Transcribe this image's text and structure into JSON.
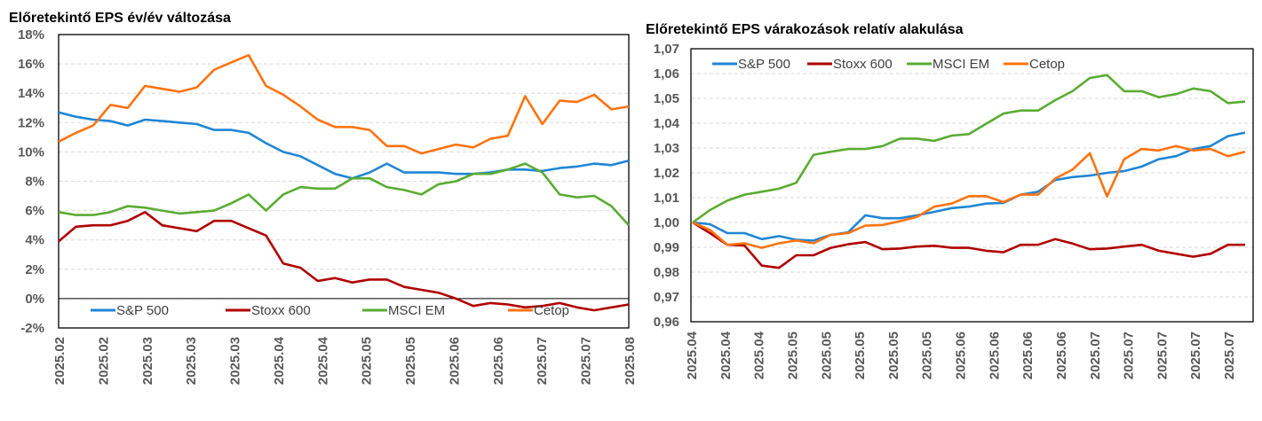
{
  "chart_data": [
    {
      "type": "line",
      "title": "Előretekintő EPS év/év változása",
      "xlabel": "",
      "ylabel": "",
      "ylim": [
        -2,
        18
      ],
      "yticks": [
        "18%",
        "16%",
        "14%",
        "12%",
        "10%",
        "8%",
        "6%",
        "4%",
        "2%",
        "0%",
        "-2%"
      ],
      "ytick_values": [
        18,
        16,
        14,
        12,
        10,
        8,
        6,
        4,
        2,
        0,
        -2
      ],
      "xticks": [
        "2025.02",
        "2025.02",
        "2025.03",
        "2025.03",
        "2025.03",
        "2025.04",
        "2025.04",
        "2025.05",
        "2025.05",
        "2025.06",
        "2025.06",
        "2025.07",
        "2025.07",
        "2025.08"
      ],
      "grid": true,
      "legend_position": "bottom-inside",
      "series": [
        {
          "name": "S&P 500",
          "color": "#1f86d6",
          "values": [
            12.7,
            12.4,
            12.2,
            12.1,
            11.8,
            12.2,
            12.1,
            12.0,
            11.9,
            11.5,
            11.5,
            11.3,
            10.6,
            10.0,
            9.7,
            9.1,
            8.5,
            8.2,
            8.6,
            9.2,
            8.6,
            8.6,
            8.6,
            8.5,
            8.5,
            8.6,
            8.8,
            8.8,
            8.7,
            8.9,
            9.0,
            9.2,
            9.1,
            9.4
          ]
        },
        {
          "name": "Stoxx 600",
          "color": "#b00000",
          "values": [
            3.9,
            4.9,
            5.0,
            5.0,
            5.3,
            5.9,
            5.0,
            4.8,
            4.6,
            5.3,
            5.3,
            4.8,
            4.3,
            2.4,
            2.1,
            1.2,
            1.4,
            1.1,
            1.3,
            1.3,
            0.8,
            0.6,
            0.4,
            0.0,
            -0.5,
            -0.3,
            -0.4,
            -0.6,
            -0.5,
            -0.3,
            -0.6,
            -0.8,
            -0.6,
            -0.4
          ]
        },
        {
          "name": "MSCI EM",
          "color": "#5aac32",
          "values": [
            5.9,
            5.7,
            5.7,
            5.9,
            6.3,
            6.2,
            6.0,
            5.8,
            5.9,
            6.0,
            6.5,
            7.1,
            6.0,
            7.1,
            7.6,
            7.5,
            7.5,
            8.2,
            8.2,
            7.6,
            7.4,
            7.1,
            7.8,
            8.0,
            8.5,
            8.5,
            8.8,
            9.2,
            8.6,
            7.1,
            6.9,
            7.0,
            6.3,
            5.0
          ]
        },
        {
          "name": "Cetop",
          "color": "#ff7310",
          "values": [
            10.7,
            11.3,
            11.8,
            13.2,
            13.0,
            14.5,
            14.3,
            14.1,
            14.4,
            15.6,
            16.1,
            16.6,
            14.5,
            13.9,
            13.1,
            12.2,
            11.7,
            11.7,
            11.5,
            10.4,
            10.4,
            9.9,
            10.2,
            10.5,
            10.3,
            10.9,
            11.1,
            13.8,
            11.9,
            13.5,
            13.4,
            13.9,
            12.9,
            13.1
          ]
        }
      ]
    },
    {
      "type": "line",
      "title": "Előretekintő EPS várakozások relatív alakulása",
      "xlabel": "",
      "ylabel": "",
      "ylim": [
        0.96,
        1.07
      ],
      "yticks": [
        "1,07",
        "1,06",
        "1,05",
        "1,04",
        "1,03",
        "1,02",
        "1,01",
        "1,00",
        "0,99",
        "0,98",
        "0,97",
        "0,96"
      ],
      "ytick_values": [
        1.07,
        1.06,
        1.05,
        1.04,
        1.03,
        1.02,
        1.01,
        1.0,
        0.99,
        0.98,
        0.97,
        0.96
      ],
      "xticks": [
        "2025.04",
        "2025.04",
        "2025.04",
        "2025.05",
        "2025.05",
        "2025.05",
        "2025.05",
        "2025.05",
        "2025.06",
        "2025.06",
        "2025.06",
        "2025.06",
        "2025.07",
        "2025.07",
        "2025.07",
        "2025.07",
        "2025.07"
      ],
      "grid": true,
      "legend_position": "top-left-inside",
      "series": [
        {
          "name": "S&P 500",
          "color": "#1f86d6",
          "values": [
            1.0,
            0.9993,
            0.9957,
            0.9957,
            0.9933,
            0.9945,
            0.993,
            0.9927,
            0.995,
            0.996,
            1.0029,
            1.0017,
            1.0017,
            1.0029,
            1.0043,
            1.0058,
            1.0064,
            1.0076,
            1.0079,
            1.0112,
            1.0124,
            1.0171,
            1.0183,
            1.0189,
            1.02,
            1.0207,
            1.0225,
            1.0255,
            1.0267,
            1.0296,
            1.0308,
            1.0348,
            1.0362
          ]
        },
        {
          "name": "Stoxx 600",
          "color": "#b00000",
          "values": [
            1.0,
            0.9957,
            0.991,
            0.9907,
            0.9826,
            0.9817,
            0.9868,
            0.9868,
            0.9898,
            0.9912,
            0.9921,
            0.9892,
            0.9895,
            0.9903,
            0.9906,
            0.9898,
            0.9898,
            0.9886,
            0.988,
            0.991,
            0.991,
            0.9933,
            0.9915,
            0.9892,
            0.9895,
            0.9903,
            0.991,
            0.9886,
            0.9874,
            0.9862,
            0.9874,
            0.991,
            0.991
          ]
        },
        {
          "name": "MSCI EM",
          "color": "#5aac32",
          "values": [
            1.0,
            1.005,
            1.0088,
            1.0112,
            1.0124,
            1.0136,
            1.016,
            1.0273,
            1.0285,
            1.0296,
            1.0296,
            1.0308,
            1.0338,
            1.0338,
            1.0329,
            1.035,
            1.0356,
            1.0398,
            1.0439,
            1.0451,
            1.0451,
            1.0493,
            1.0529,
            1.0582,
            1.0594,
            1.0529,
            1.0529,
            1.0505,
            1.0517,
            1.054,
            1.0529,
            1.0481,
            1.0487
          ]
        },
        {
          "name": "Cetop",
          "color": "#ff7310",
          "values": [
            1.0,
            0.997,
            0.991,
            0.9916,
            0.9898,
            0.9916,
            0.9927,
            0.9916,
            0.995,
            0.9957,
            0.9987,
            0.999,
            1.0005,
            1.0023,
            1.0064,
            1.0076,
            1.0106,
            1.0106,
            1.0082,
            1.0112,
            1.0112,
            1.0177,
            1.0213,
            1.0279,
            1.0105,
            1.0255,
            1.0296,
            1.029,
            1.0308,
            1.029,
            1.0296,
            1.0267,
            1.0285
          ]
        }
      ]
    }
  ]
}
